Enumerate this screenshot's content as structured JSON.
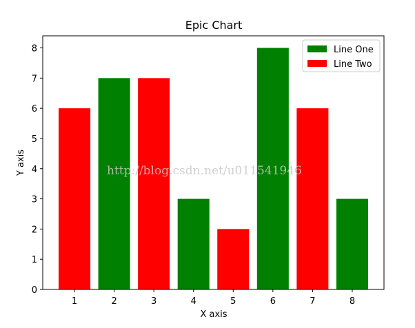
{
  "chart_data": {
    "type": "bar",
    "title": "Epic Chart",
    "xlabel": "X axis",
    "ylabel": "Y axis",
    "xlim": [
      0.2,
      8.8
    ],
    "ylim": [
      0,
      8.4
    ],
    "xticks": [
      1,
      2,
      3,
      4,
      5,
      6,
      7,
      8
    ],
    "yticks": [
      0,
      1,
      2,
      3,
      4,
      5,
      6,
      7,
      8
    ],
    "grid": false,
    "legend_position": "top-right",
    "series": [
      {
        "name": "Line One",
        "color": "#008000",
        "x": [
          2,
          4,
          6,
          8
        ],
        "values": [
          7,
          3,
          8,
          3
        ]
      },
      {
        "name": "Line Two",
        "color": "#ff0000",
        "x": [
          1,
          3,
          5,
          7
        ],
        "values": [
          6,
          7,
          2,
          6
        ]
      }
    ]
  },
  "watermark": "http://blog.csdn.net/u011541946"
}
